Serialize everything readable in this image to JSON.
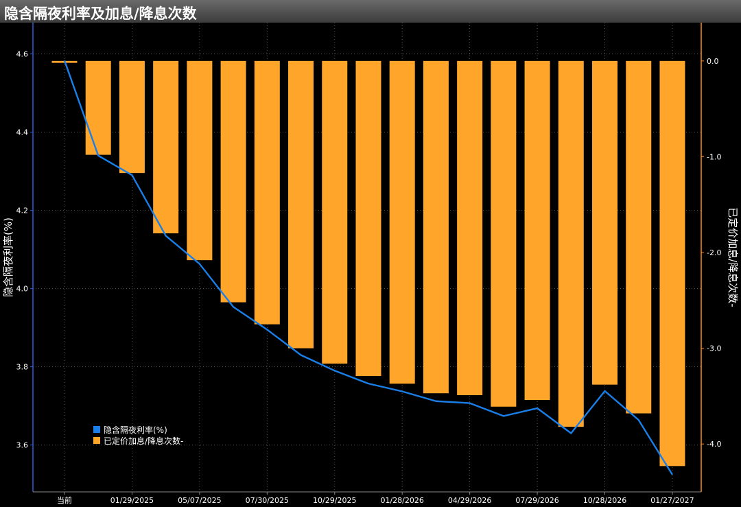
{
  "title": "隐含隔夜利率及加息/降息次数",
  "colors": {
    "line": "#1a7fe8",
    "bar": "#ffa52a",
    "axis_left": "#2f5fd6",
    "axis_right": "#ff8c1a",
    "grid": "#555555"
  },
  "chart_data": {
    "type": "bar",
    "title": "隐含隔夜利率及加息/降息次数",
    "x_tick_labels": [
      "当前",
      "01/29/2025",
      "05/07/2025",
      "07/30/2025",
      "10/29/2025",
      "01/28/2026",
      "04/29/2026",
      "07/29/2026",
      "10/28/2026",
      "01/27/2027"
    ],
    "ylabel_left": "隐含隔夜利率(%)",
    "ylabel_right": "已定价加息/降息次数-",
    "ylim_left": [
      3.48,
      4.68
    ],
    "yticks_left": [
      3.6,
      3.8,
      4.0,
      4.2,
      4.4,
      4.6
    ],
    "ylim_right": [
      -4.5,
      0.4
    ],
    "yticks_right": [
      0.0,
      -1.0,
      -2.0,
      -3.0,
      -4.0
    ],
    "grid": true,
    "legend_position": "bottom-left",
    "series": [
      {
        "name": "隐含隔夜利率(%)",
        "type": "line",
        "axis": "left",
        "values": [
          4.583,
          4.34,
          4.29,
          4.135,
          4.063,
          3.953,
          3.895,
          3.83,
          3.79,
          3.757,
          3.737,
          3.712,
          3.707,
          3.674,
          3.694,
          3.63,
          3.738,
          3.664,
          3.524
        ]
      },
      {
        "name": "已定价加息/降息次数-",
        "type": "bar",
        "axis": "right",
        "values": [
          -0.02,
          -0.98,
          -1.17,
          -1.8,
          -2.08,
          -2.52,
          -2.75,
          -3.0,
          -3.16,
          -3.29,
          -3.37,
          -3.47,
          -3.49,
          -3.61,
          -3.54,
          -3.82,
          -3.38,
          -3.68,
          -4.23
        ]
      }
    ]
  }
}
